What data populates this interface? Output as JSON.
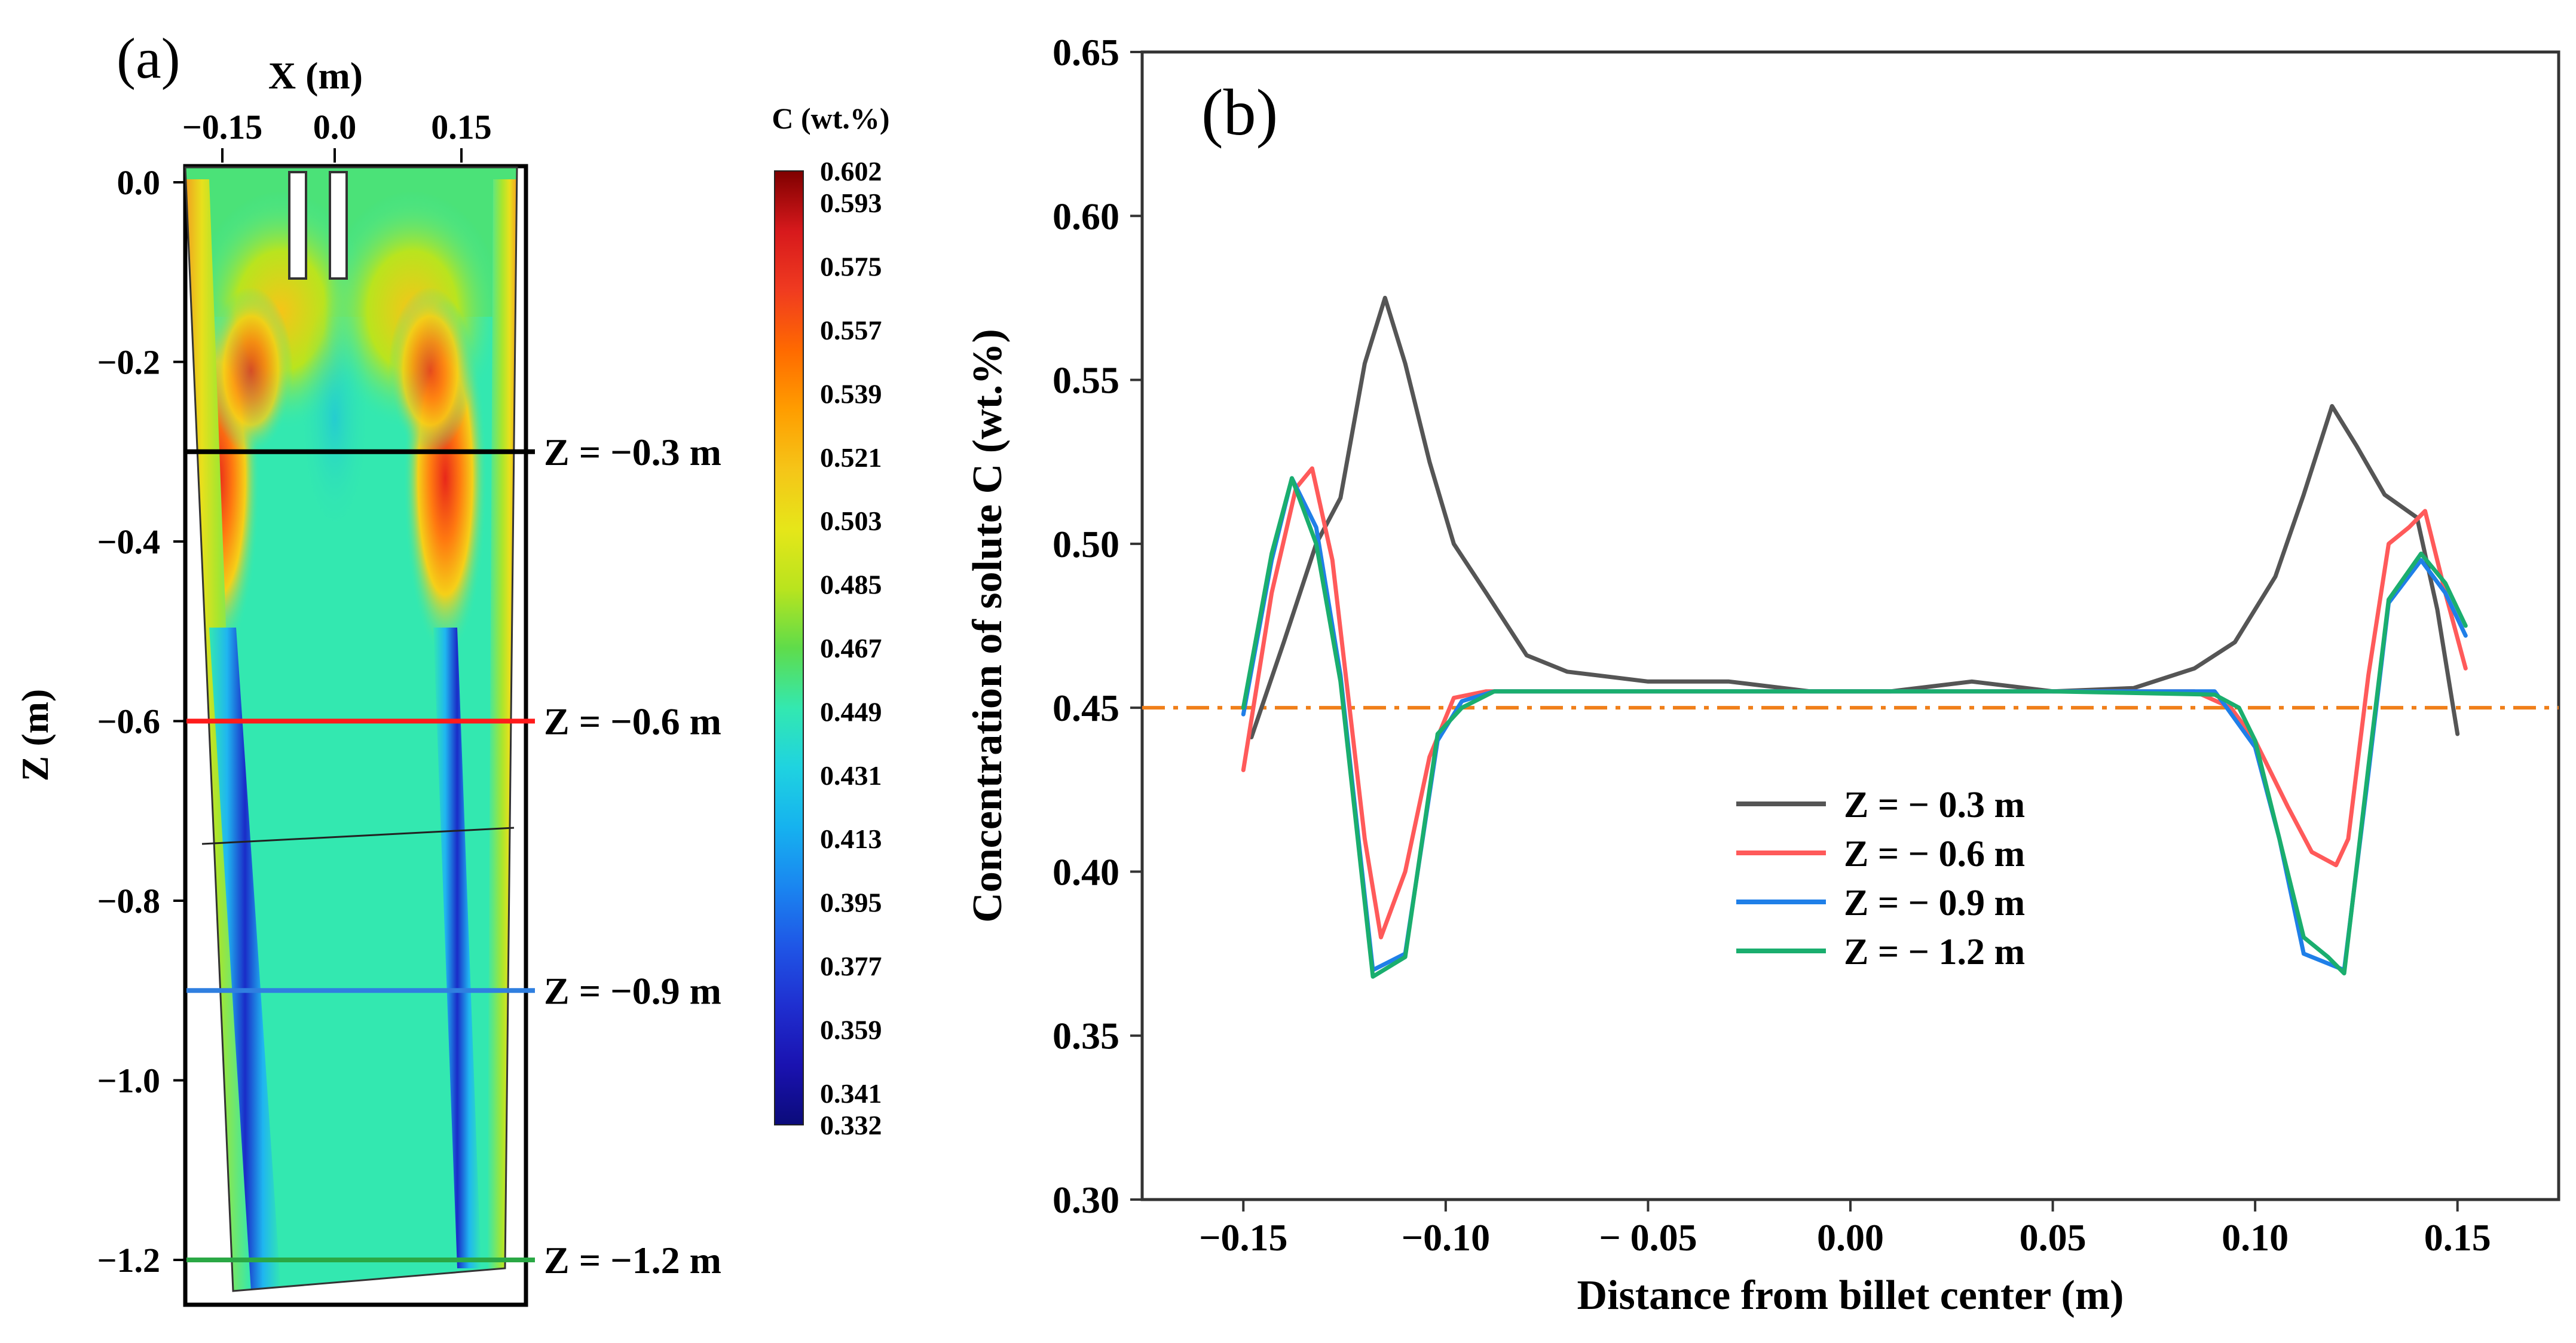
{
  "panel_a": {
    "label": "(a)",
    "x_axis_title": "X (m)",
    "x_ticks": [
      "−0.15",
      "0.0",
      "0.15"
    ],
    "z_axis_title": "Z (m)",
    "z_ticks": [
      "0.0",
      "−0.2",
      "−0.4",
      "−0.6",
      "−0.8",
      "−1.0",
      "−1.2"
    ],
    "colorbar_title": "C (wt.%)",
    "colorbar_ticks": [
      "0.602",
      "0.593",
      "0.575",
      "0.557",
      "0.539",
      "0.521",
      "0.503",
      "0.485",
      "0.467",
      "0.449",
      "0.431",
      "0.413",
      "0.395",
      "0.377",
      "0.359",
      "0.341",
      "0.332"
    ],
    "colorbar_colors": [
      "#7f0000",
      "#d7191c",
      "#f03b20",
      "#ff6a00",
      "#ff9d00",
      "#f5c518",
      "#e6e619",
      "#b9e41e",
      "#5fdc4a",
      "#33e8b0",
      "#1fd3e0",
      "#16b2ef",
      "#1a86f0",
      "#1f56e6",
      "#1f2fd0",
      "#1a12b0",
      "#0b0b7a"
    ],
    "section_lines": [
      {
        "label": "Z = −0.3 m",
        "z": -0.3,
        "color": "#000000"
      },
      {
        "label": "Z = −0.6 m",
        "z": -0.6,
        "color": "#ff1a1a"
      },
      {
        "label": "Z = −0.9 m",
        "z": -0.9,
        "color": "#2f7fe0"
      },
      {
        "label": "Z = −1.2 m",
        "z": -1.2,
        "color": "#2aa845"
      }
    ]
  },
  "chart_data": {
    "type": "line",
    "panel_label": "(b)",
    "title": "",
    "xlabel": "Distance from billet center (m)",
    "ylabel": "Concentration of solute C (wt.%)",
    "xlim": [
      -0.175,
      0.175
    ],
    "ylim": [
      0.3,
      0.65
    ],
    "x_ticks": [
      -0.15,
      -0.1,
      -0.05,
      0.0,
      0.05,
      0.1,
      0.15
    ],
    "x_tick_labels": [
      "−0.15",
      "−0.10",
      "− 0.05",
      "0.00",
      "0.05",
      "0.10",
      "0.15"
    ],
    "y_ticks": [
      0.3,
      0.35,
      0.4,
      0.45,
      0.5,
      0.55,
      0.6,
      0.65
    ],
    "y_tick_labels": [
      "0.30",
      "0.35",
      "0.40",
      "0.45",
      "0.50",
      "0.55",
      "0.60",
      "0.65"
    ],
    "reference_line": {
      "y": 0.45,
      "color": "#f07f1a",
      "style": "dash-dot"
    },
    "legend_position": "center",
    "series": [
      {
        "name": "Z = − 0.3 m",
        "color": "#555555",
        "x": [
          -0.148,
          -0.14,
          -0.132,
          -0.126,
          -0.12,
          -0.115,
          -0.11,
          -0.104,
          -0.098,
          -0.09,
          -0.08,
          -0.07,
          -0.05,
          -0.03,
          -0.01,
          0.01,
          0.03,
          0.05,
          0.07,
          0.085,
          0.095,
          0.105,
          0.112,
          0.119,
          0.125,
          0.132,
          0.14,
          0.145,
          0.15
        ],
        "y": [
          0.441,
          0.47,
          0.5,
          0.514,
          0.555,
          0.575,
          0.555,
          0.525,
          0.5,
          0.485,
          0.466,
          0.461,
          0.458,
          0.458,
          0.455,
          0.455,
          0.458,
          0.455,
          0.456,
          0.462,
          0.47,
          0.49,
          0.515,
          0.542,
          0.53,
          0.515,
          0.508,
          0.48,
          0.442
        ]
      },
      {
        "name": "Z = − 0.6 m",
        "color": "#ff5a5a",
        "x": [
          -0.15,
          -0.143,
          -0.137,
          -0.133,
          -0.128,
          -0.12,
          -0.116,
          -0.11,
          -0.104,
          -0.098,
          -0.09,
          -0.08,
          -0.05,
          0.0,
          0.05,
          0.085,
          0.094,
          0.1,
          0.108,
          0.114,
          0.12,
          0.123,
          0.128,
          0.133,
          0.138,
          0.142,
          0.147,
          0.152
        ],
        "y": [
          0.431,
          0.485,
          0.517,
          0.523,
          0.495,
          0.41,
          0.38,
          0.4,
          0.435,
          0.453,
          0.455,
          0.455,
          0.455,
          0.455,
          0.455,
          0.455,
          0.45,
          0.44,
          0.42,
          0.406,
          0.402,
          0.41,
          0.46,
          0.5,
          0.505,
          0.51,
          0.485,
          0.462
        ]
      },
      {
        "name": "Z = − 0.9 m",
        "color": "#1f7fe8",
        "x": [
          -0.15,
          -0.143,
          -0.138,
          -0.132,
          -0.126,
          -0.118,
          -0.11,
          -0.102,
          -0.096,
          -0.088,
          -0.08,
          -0.05,
          0.0,
          0.05,
          0.09,
          0.093,
          0.1,
          0.106,
          0.112,
          0.118,
          0.122,
          0.128,
          0.133,
          0.141,
          0.147,
          0.152
        ],
        "y": [
          0.448,
          0.495,
          0.52,
          0.505,
          0.46,
          0.37,
          0.375,
          0.44,
          0.452,
          0.455,
          0.455,
          0.455,
          0.455,
          0.455,
          0.455,
          0.45,
          0.438,
          0.41,
          0.375,
          0.372,
          0.37,
          0.43,
          0.482,
          0.495,
          0.485,
          0.472
        ]
      },
      {
        "name": "Z = − 1.2 m",
        "color": "#1aae6e",
        "x": [
          -0.15,
          -0.143,
          -0.138,
          -0.132,
          -0.126,
          -0.118,
          -0.11,
          -0.102,
          -0.096,
          -0.088,
          -0.08,
          -0.05,
          0.0,
          0.05,
          0.09,
          0.096,
          0.1,
          0.106,
          0.112,
          0.118,
          0.122,
          0.128,
          0.133,
          0.141,
          0.147,
          0.152
        ],
        "y": [
          0.45,
          0.497,
          0.52,
          0.5,
          0.458,
          0.368,
          0.374,
          0.442,
          0.45,
          0.455,
          0.455,
          0.455,
          0.455,
          0.455,
          0.454,
          0.45,
          0.44,
          0.41,
          0.38,
          0.374,
          0.369,
          0.432,
          0.483,
          0.497,
          0.488,
          0.475
        ]
      }
    ]
  }
}
